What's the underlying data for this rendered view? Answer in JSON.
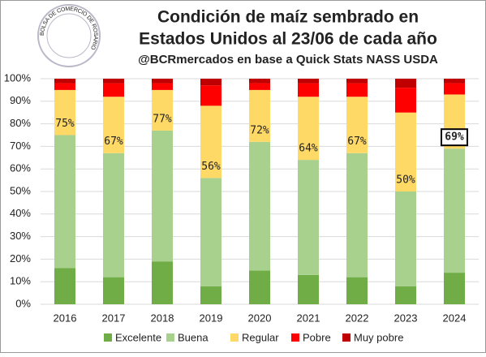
{
  "chart_data": {
    "type": "stacked_bar",
    "title": [
      "Condición de maíz sembrado en",
      "Estados Unidos al 23/06 de cada año"
    ],
    "subtitle": "@BCRmercados en base a Quick Stats NASS USDA",
    "logo_text": "BOLSA DE COMERCIO DE ROSARIO",
    "categories": [
      "2016",
      "2017",
      "2018",
      "2019",
      "2020",
      "2021",
      "2022",
      "2023",
      "2024"
    ],
    "series": [
      {
        "name": "Excelente",
        "color": "#70ad47",
        "values": [
          16,
          12,
          19,
          8,
          15,
          13,
          12,
          8,
          14
        ]
      },
      {
        "name": "Buena",
        "color": "#a9d18e",
        "values": [
          59,
          55,
          58,
          48,
          57,
          51,
          55,
          42,
          55
        ]
      },
      {
        "name": "Regular",
        "color": "#ffd966",
        "values": [
          20,
          25,
          18,
          32,
          23,
          28,
          25,
          35,
          24
        ]
      },
      {
        "name": "Pobre",
        "color": "#ff0000",
        "values": [
          3,
          6,
          3,
          9,
          3,
          6,
          6,
          11,
          5
        ]
      },
      {
        "name": "Muy pobre",
        "color": "#c00000",
        "values": [
          2,
          2,
          2,
          3,
          2,
          2,
          2,
          4,
          2
        ]
      }
    ],
    "good_excellent": {
      "values": [
        75,
        67,
        77,
        56,
        72,
        64,
        67,
        50,
        69
      ],
      "value_labels": [
        "75%",
        "67%",
        "77%",
        "56%",
        "72%",
        "64%",
        "67%",
        "50%",
        "69%"
      ]
    },
    "ylim": [
      0,
      100
    ],
    "yticks": [
      {
        "value": 0,
        "label": "0%"
      },
      {
        "value": 10,
        "label": "10%"
      },
      {
        "value": 20,
        "label": "20%"
      },
      {
        "value": 30,
        "label": "30%"
      },
      {
        "value": 40,
        "label": "40%"
      },
      {
        "value": 50,
        "label": "50%"
      },
      {
        "value": 60,
        "label": "60%"
      },
      {
        "value": 70,
        "label": "70%"
      },
      {
        "value": 80,
        "label": "80%"
      },
      {
        "value": 90,
        "label": "90%"
      },
      {
        "value": 100,
        "label": "100%"
      }
    ],
    "grid": true
  }
}
